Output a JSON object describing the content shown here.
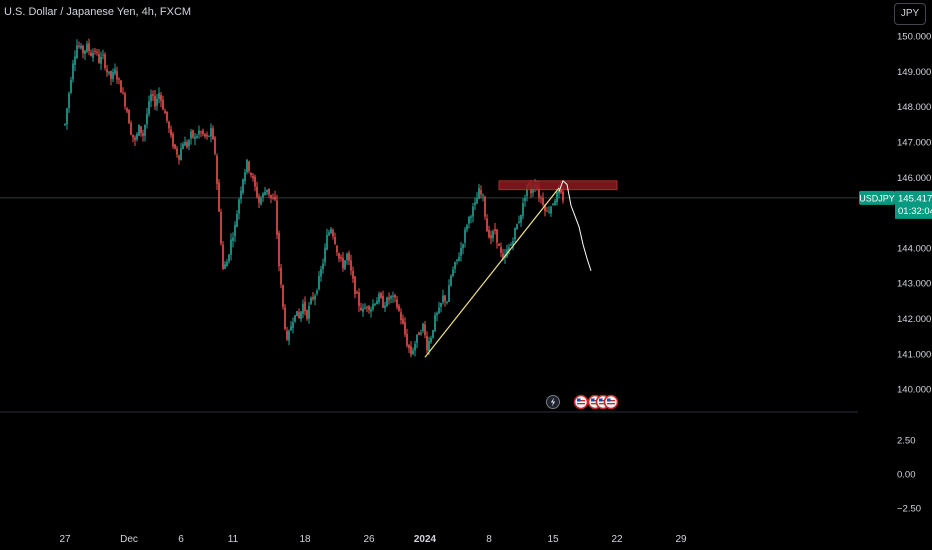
{
  "header": {
    "symbol_title": "U.S. Dollar / Japanese Yen, 4h, FXCM",
    "currency_button": "JPY"
  },
  "price_badge": {
    "symbol": "USDJPY",
    "price": "145.417",
    "countdown": "01:32:04"
  },
  "colors": {
    "background": "#000000",
    "up_candle": "#26a69a",
    "down_candle": "#ef5350",
    "trendline": "#f0e08a",
    "resistance_zone": "#8b1a22",
    "projection": "#ffffff",
    "price_badge": "#089981",
    "text": "#d1d4dc"
  },
  "icons": [
    "flash-icon",
    "us-flag-event-icon"
  ],
  "chart_data": {
    "type": "candlestick",
    "symbol": "USDJPY",
    "timeframe": "4h",
    "x_ticks": [
      {
        "t": 0,
        "label": "27"
      },
      {
        "t": 32,
        "label": "Dec"
      },
      {
        "t": 58,
        "label": "6"
      },
      {
        "t": 84,
        "label": "11"
      },
      {
        "t": 120,
        "label": "18"
      },
      {
        "t": 152,
        "label": "26"
      },
      {
        "t": 180,
        "label": "2024"
      },
      {
        "t": 212,
        "label": "8"
      },
      {
        "t": 244,
        "label": "15"
      },
      {
        "t": 276,
        "label": "22"
      },
      {
        "t": 308,
        "label": "29"
      }
    ],
    "ylim": [
      139.35,
      150.4
    ],
    "y_ticks": [
      "150.000",
      "149.000",
      "148.000",
      "147.000",
      "146.000",
      "145.000",
      "144.000",
      "143.000",
      "142.000",
      "141.000",
      "140.000"
    ],
    "y_tick_values": [
      150,
      149,
      148,
      147,
      146,
      145,
      144,
      143,
      142,
      141,
      140
    ],
    "current_price": 145.417,
    "price_path": [
      [
        0,
        147.5
      ],
      [
        2,
        148.4
      ],
      [
        4,
        149.3
      ],
      [
        6,
        149.75
      ],
      [
        9,
        149.55
      ],
      [
        11,
        149.7
      ],
      [
        13,
        149.5
      ],
      [
        15,
        149.6
      ],
      [
        17,
        149.3
      ],
      [
        19,
        149.4
      ],
      [
        21,
        149.0
      ],
      [
        23,
        148.8
      ],
      [
        25,
        149.0
      ],
      [
        27,
        148.7
      ],
      [
        29,
        148.3
      ],
      [
        31,
        147.9
      ],
      [
        33,
        147.3
      ],
      [
        35,
        147.0
      ],
      [
        37,
        147.4
      ],
      [
        39,
        147.2
      ],
      [
        41,
        147.8
      ],
      [
        43,
        148.3
      ],
      [
        45,
        148.1
      ],
      [
        47,
        148.4
      ],
      [
        49,
        148.0
      ],
      [
        51,
        147.6
      ],
      [
        53,
        147.1
      ],
      [
        55,
        146.8
      ],
      [
        57,
        146.6
      ],
      [
        59,
        147.0
      ],
      [
        61,
        146.9
      ],
      [
        63,
        147.2
      ],
      [
        65,
        147.1
      ],
      [
        67,
        147.3
      ],
      [
        69,
        147.2
      ],
      [
        71,
        147.1
      ],
      [
        73,
        147.3
      ],
      [
        75,
        146.7
      ],
      [
        77,
        145.0
      ],
      [
        79,
        143.4
      ],
      [
        81,
        143.6
      ],
      [
        83,
        144.2
      ],
      [
        85,
        144.6
      ],
      [
        87,
        145.4
      ],
      [
        89,
        146.0
      ],
      [
        91,
        146.4
      ],
      [
        93,
        146.1
      ],
      [
        95,
        145.7
      ],
      [
        97,
        145.3
      ],
      [
        99,
        145.5
      ],
      [
        101,
        145.7
      ],
      [
        103,
        145.4
      ],
      [
        105,
        145.3
      ],
      [
        107,
        143.5
      ],
      [
        109,
        142.3
      ],
      [
        111,
        141.3
      ],
      [
        113,
        141.8
      ],
      [
        115,
        142.2
      ],
      [
        117,
        142.0
      ],
      [
        119,
        142.4
      ],
      [
        121,
        142.1
      ],
      [
        123,
        142.5
      ],
      [
        125,
        142.7
      ],
      [
        127,
        143.1
      ],
      [
        129,
        143.6
      ],
      [
        131,
        144.3
      ],
      [
        133,
        144.6
      ],
      [
        135,
        144.2
      ],
      [
        137,
        143.7
      ],
      [
        139,
        143.5
      ],
      [
        141,
        143.8
      ],
      [
        143,
        143.3
      ],
      [
        145,
        142.8
      ],
      [
        147,
        142.4
      ],
      [
        149,
        142.2
      ],
      [
        151,
        142.4
      ],
      [
        153,
        142.3
      ],
      [
        155,
        142.5
      ],
      [
        157,
        142.6
      ],
      [
        159,
        142.4
      ],
      [
        161,
        142.5
      ],
      [
        163,
        142.6
      ],
      [
        165,
        142.5
      ],
      [
        167,
        142.2
      ],
      [
        169,
        141.8
      ],
      [
        171,
        141.3
      ],
      [
        173,
        141.0
      ],
      [
        175,
        141.3
      ],
      [
        177,
        141.6
      ],
      [
        179,
        141.8
      ],
      [
        181,
        141.2
      ],
      [
        183,
        141.5
      ],
      [
        185,
        142.0
      ],
      [
        187,
        142.2
      ],
      [
        189,
        142.6
      ],
      [
        191,
        142.5
      ],
      [
        193,
        143.2
      ],
      [
        195,
        143.5
      ],
      [
        197,
        143.8
      ],
      [
        199,
        144.2
      ],
      [
        201,
        144.7
      ],
      [
        203,
        145.0
      ],
      [
        205,
        145.2
      ],
      [
        207,
        145.6
      ],
      [
        209,
        145.4
      ],
      [
        211,
        144.5
      ],
      [
        213,
        144.3
      ],
      [
        215,
        144.5
      ],
      [
        217,
        144.0
      ],
      [
        219,
        143.6
      ],
      [
        221,
        143.9
      ],
      [
        223,
        144.1
      ],
      [
        225,
        144.5
      ],
      [
        227,
        144.8
      ],
      [
        229,
        145.2
      ],
      [
        231,
        145.8
      ],
      [
        233,
        145.6
      ],
      [
        235,
        145.9
      ],
      [
        237,
        145.5
      ],
      [
        239,
        145.3
      ],
      [
        241,
        145.0
      ],
      [
        243,
        145.2
      ],
      [
        245,
        145.4
      ],
      [
        247,
        145.6
      ],
      [
        249,
        145.4
      ]
    ],
    "annotations": {
      "trendline": {
        "from": {
          "t": 180,
          "price": 140.9
        },
        "to": {
          "t": 247,
          "price": 145.7
        }
      },
      "resistance_zone": {
        "t_start": 217,
        "t_end": 276,
        "price_low": 145.65,
        "price_high": 145.9
      },
      "projection_path": [
        [
          247,
          145.6
        ],
        [
          249,
          145.9
        ],
        [
          251,
          145.8
        ],
        [
          253,
          145.2
        ],
        [
          255,
          144.9
        ],
        [
          257,
          144.6
        ],
        [
          259,
          144.1
        ],
        [
          261,
          143.7
        ],
        [
          263,
          143.35
        ]
      ]
    },
    "event_markers": [
      {
        "t": 244,
        "icon": "flash-icon"
      },
      {
        "t": 258,
        "icon": "us-flag-event-icon"
      },
      {
        "t": 265,
        "icon": "us-flag-event-icon"
      },
      {
        "t": 269,
        "icon": "us-flag-event-icon"
      },
      {
        "t": 273,
        "icon": "us-flag-event-icon"
      }
    ],
    "indicator_pane": {
      "ylim": [
        -3.4,
        4.5
      ],
      "y_ticks": [
        "2.50",
        "0.00",
        "−2.50"
      ],
      "y_tick_values": [
        2.5,
        0,
        -2.5
      ]
    }
  }
}
